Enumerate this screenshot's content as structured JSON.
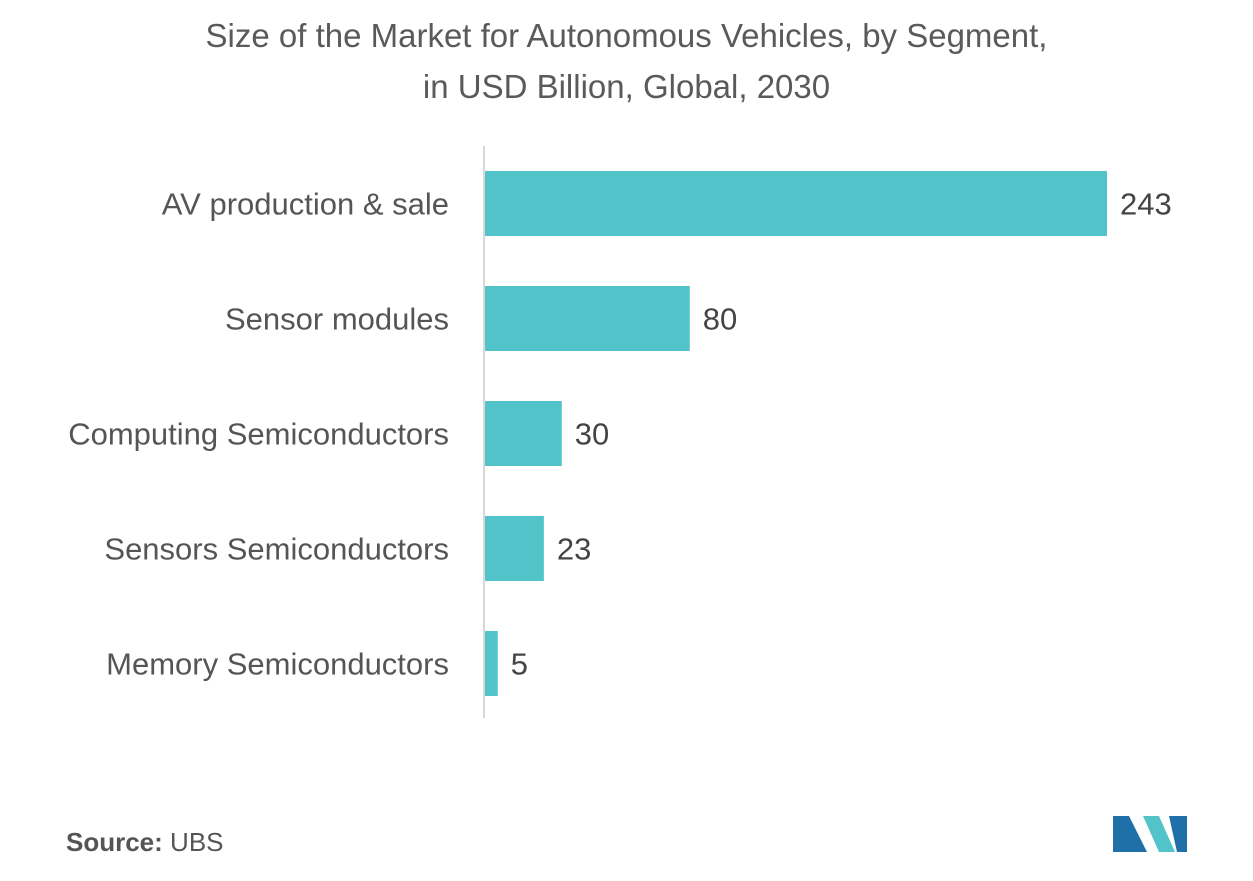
{
  "chart_data": {
    "type": "bar",
    "orientation": "horizontal",
    "title": "Size of the Market for Autonomous Vehicles, by Segment, in USD Billion, Global, 2030",
    "title_lines": [
      "Size of the Market for Autonomous Vehicles, by Segment,",
      "in USD Billion, Global, 2030"
    ],
    "categories": [
      "AV production & sale",
      "Sensor modules",
      "Computing Semiconductors",
      "Sensors Semiconductors",
      "Memory Semiconductors"
    ],
    "values": [
      243,
      80,
      30,
      23,
      5
    ],
    "value_labels": [
      "243",
      "80",
      "30",
      "23",
      "5"
    ],
    "xlim": [
      0,
      243
    ],
    "grid": false,
    "legend": "none",
    "bar_color": "#52c4c9"
  },
  "source": {
    "label": "Source:",
    "value": "UBS"
  },
  "logo": {
    "icon": "mordor-intelligence-logo-icon",
    "colors": [
      "#1f6fa8",
      "#52c4c9"
    ]
  }
}
